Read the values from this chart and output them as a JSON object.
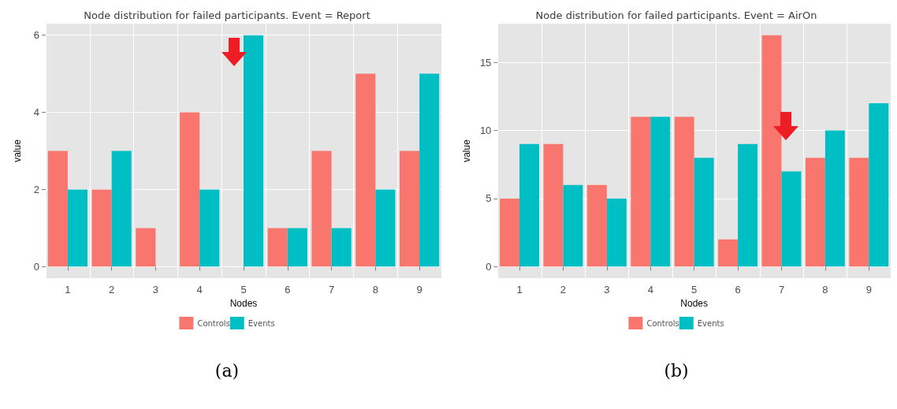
{
  "chart_data": [
    {
      "type": "bar",
      "title": "Node distribution for failed participants. Event = Report",
      "xlabel": "Nodes",
      "ylabel": "value",
      "categories": [
        "1",
        "2",
        "3",
        "4",
        "5",
        "6",
        "7",
        "8",
        "9"
      ],
      "series": [
        {
          "name": "Controls",
          "color": "#f8766d",
          "values": [
            3,
            2,
            1,
            4,
            0,
            1,
            3,
            5,
            3
          ]
        },
        {
          "name": "Events",
          "color": "#00bfc4",
          "values": [
            2,
            3,
            0,
            2,
            6,
            1,
            1,
            2,
            5
          ]
        }
      ],
      "ylim": [
        -0.3,
        6.3
      ],
      "yticks": [
        0,
        2,
        4,
        6
      ],
      "grid": true,
      "legend": "bottom",
      "annotations": [
        "(a)"
      ]
    },
    {
      "type": "bar",
      "title": "Node distribution for failed participants. Event = AirOn",
      "xlabel": "Nodes",
      "ylabel": "value",
      "categories": [
        "1",
        "2",
        "3",
        "4",
        "5",
        "6",
        "7",
        "8",
        "9"
      ],
      "series": [
        {
          "name": "Controls",
          "color": "#f8766d",
          "values": [
            5,
            9,
            6,
            11,
            11,
            2,
            17,
            8,
            8
          ]
        },
        {
          "name": "Events",
          "color": "#00bfc4",
          "values": [
            9,
            6,
            5,
            11,
            8,
            9,
            7,
            10,
            12
          ]
        }
      ],
      "ylim": [
        -0.85,
        17.85
      ],
      "yticks": [
        0,
        5,
        10,
        15
      ],
      "grid": true,
      "legend": "bottom",
      "annotations": [
        "(b)"
      ]
    }
  ]
}
